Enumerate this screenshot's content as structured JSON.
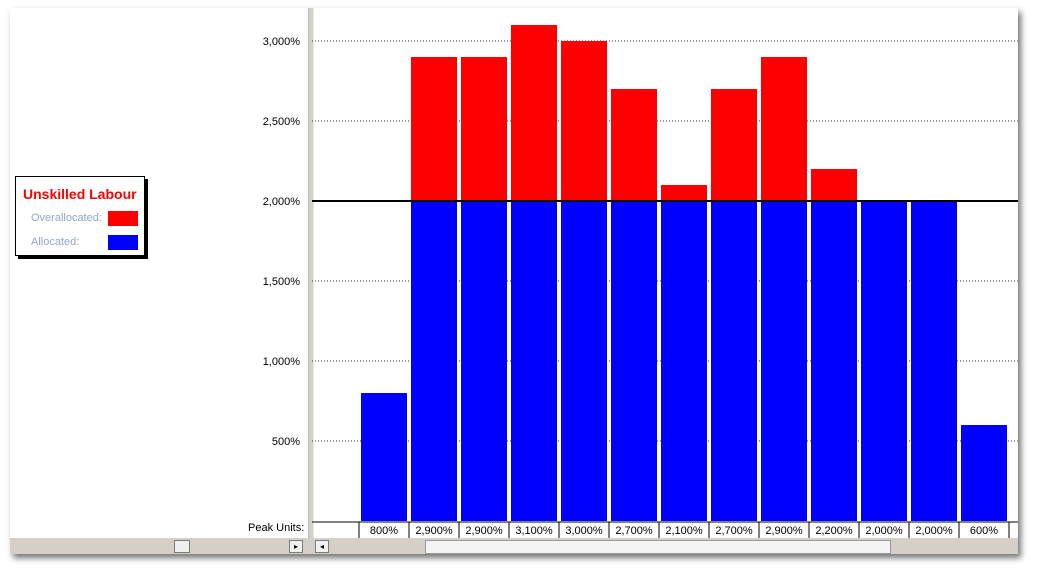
{
  "legend": {
    "title": "Unskilled Labour",
    "overallocated_label": "Overallocated:",
    "allocated_label": "Allocated:"
  },
  "peak_units_label": "Peak Units:",
  "colors": {
    "overallocated": "#ff0000",
    "allocated": "#0000ff",
    "legend_title": "#ff0000"
  },
  "scroll": {
    "left_arrow": "◂",
    "right_arrow": "▸"
  },
  "chart_data": {
    "type": "bar",
    "stacked": true,
    "threshold": 2000,
    "ylim": [
      0,
      3200
    ],
    "yticks": [
      500,
      1000,
      1500,
      2000,
      2500,
      3000
    ],
    "ytick_labels": [
      "500%",
      "1,000%",
      "1,500%",
      "2,000%",
      "2,500%",
      "3,000%"
    ],
    "peak_units": [
      800,
      2900,
      2900,
      3100,
      3000,
      2700,
      2100,
      2700,
      2900,
      2200,
      2000,
      2000,
      600
    ],
    "peak_labels": [
      "800%",
      "2,900%",
      "2,900%",
      "3,100%",
      "3,000%",
      "2,700%",
      "2,100%",
      "2,700%",
      "2,900%",
      "2,200%",
      "2,000%",
      "2,000%",
      "600%"
    ],
    "series": [
      {
        "name": "Allocated",
        "values": [
          800,
          2000,
          2000,
          2000,
          2000,
          2000,
          2000,
          2000,
          2000,
          2000,
          2000,
          2000,
          600
        ]
      },
      {
        "name": "Overallocated",
        "values": [
          0,
          900,
          900,
          1100,
          1000,
          700,
          100,
          700,
          900,
          200,
          0,
          0,
          0
        ]
      }
    ],
    "grid": true
  }
}
